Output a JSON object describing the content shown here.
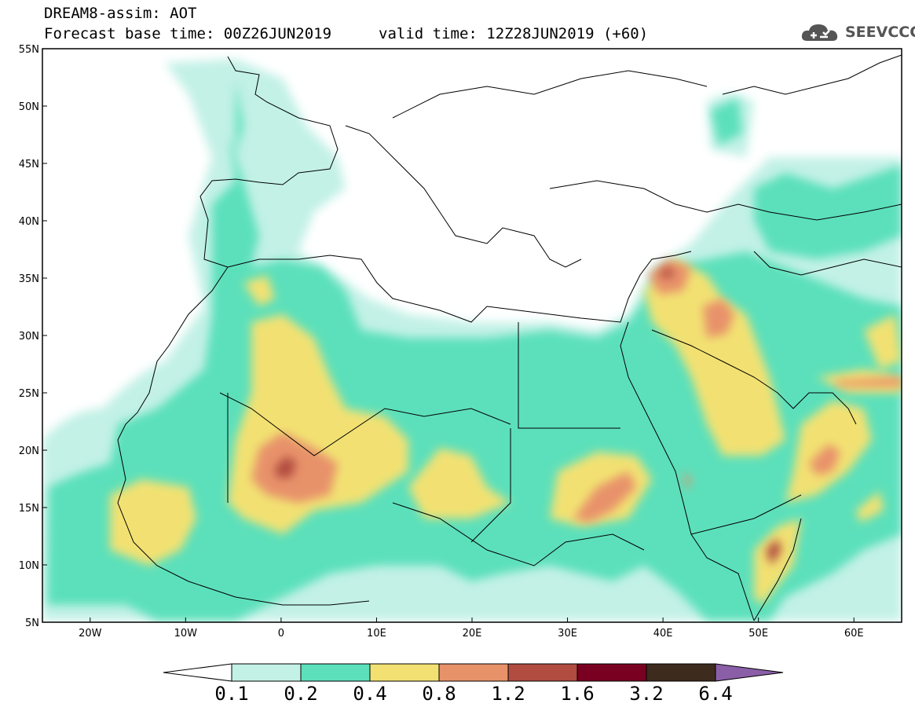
{
  "header": {
    "title_line1": "DREAM8-assim: AOT",
    "title_line2": "Forecast base time: 00Z26JUN2019",
    "valid_time": "valid time: 12Z28JUN2019 (+60)",
    "logo_text": "SEEVCCC",
    "logo_icon": "cloud-icon"
  },
  "map": {
    "projection": "lat-lon",
    "lon_range": [
      -25,
      65
    ],
    "lat_range": [
      5,
      55
    ],
    "lon_ticks": [
      "20W",
      "10W",
      "0",
      "10E",
      "20E",
      "30E",
      "40E",
      "50E",
      "60E"
    ],
    "lat_ticks": [
      "55N",
      "50N",
      "45N",
      "40N",
      "35N",
      "30N",
      "25N",
      "20N",
      "15N",
      "10N",
      "5N"
    ]
  },
  "colorbar": {
    "labels": [
      "0.1",
      "0.2",
      "0.4",
      "0.8",
      "1.2",
      "1.6",
      "3.2",
      "6.4"
    ],
    "colors": [
      "#ffffff",
      "#c3f1e6",
      "#5be0bb",
      "#f2e172",
      "#e8926a",
      "#b04c40",
      "#7a0022",
      "#3d2b1e",
      "#8b5fa8"
    ]
  },
  "colors": {
    "land_outline": "#000000",
    "aot_0_1": "#c3f1e6",
    "aot_0_2": "#5be0bb",
    "aot_0_4": "#f2e172",
    "aot_0_8": "#e8926a",
    "aot_1_2": "#b04c40"
  }
}
